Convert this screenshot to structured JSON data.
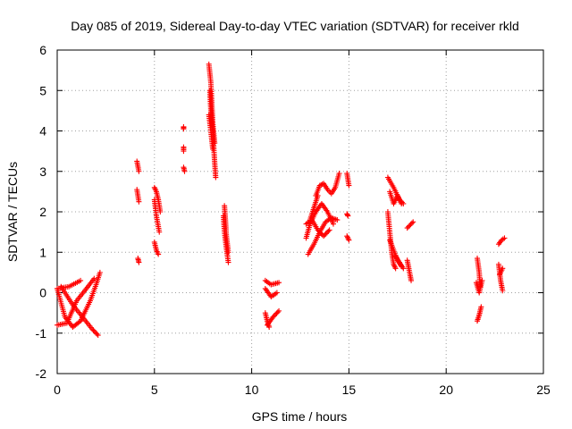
{
  "chart_data": {
    "type": "scatter",
    "title": "Day 085 of 2019, Sidereal Day-to-day VTEC variation (SDTVAR) for receiver rkld",
    "xlabel": "GPS time / hours",
    "ylabel": "SDTVAR / TECUs",
    "xlim": [
      0,
      25
    ],
    "ylim": [
      -2,
      6
    ],
    "xticks": [
      0,
      5,
      10,
      15,
      20,
      25
    ],
    "yticks": [
      -2,
      -1,
      0,
      1,
      2,
      3,
      4,
      5,
      6
    ],
    "grid": true,
    "marker": "plus",
    "color": "#ff0000",
    "segments": [
      {
        "x": [
          0.0,
          0.4,
          0.8,
          1.2,
          1.4
        ],
        "y": [
          0.1,
          -0.6,
          -0.85,
          -0.7,
          -0.5
        ]
      },
      {
        "x": [
          0.0,
          0.5,
          1.0,
          1.5,
          1.9
        ],
        "y": [
          -0.8,
          -0.75,
          -0.2,
          0.1,
          0.35
        ]
      },
      {
        "x": [
          0.2,
          0.8,
          1.3,
          1.8,
          2.1
        ],
        "y": [
          0.15,
          -0.3,
          -0.6,
          -0.9,
          -1.05
        ]
      },
      {
        "x": [
          1.4,
          1.7,
          2.0,
          2.2
        ],
        "y": [
          -0.5,
          -0.2,
          0.2,
          0.5
        ]
      },
      {
        "x": [
          0.0,
          0.6,
          1.2
        ],
        "y": [
          0.1,
          0.15,
          0.3
        ]
      },
      {
        "x": [
          4.1,
          4.2
        ],
        "y": [
          3.25,
          3.0
        ]
      },
      {
        "x": [
          4.1,
          4.2
        ],
        "y": [
          2.55,
          2.25
        ]
      },
      {
        "x": [
          4.15,
          4.2
        ],
        "y": [
          0.85,
          0.75
        ]
      },
      {
        "x": [
          5.0,
          5.1,
          5.2,
          5.3
        ],
        "y": [
          2.6,
          2.5,
          2.3,
          2.0
        ]
      },
      {
        "x": [
          5.0,
          5.1,
          5.25
        ],
        "y": [
          2.3,
          1.9,
          1.5
        ]
      },
      {
        "x": [
          5.0,
          5.1,
          5.2
        ],
        "y": [
          1.25,
          1.05,
          0.95
        ]
      },
      {
        "x": [
          6.5,
          6.5
        ],
        "y": [
          4.1,
          4.05
        ]
      },
      {
        "x": [
          6.5,
          6.5
        ],
        "y": [
          3.6,
          3.5
        ]
      },
      {
        "x": [
          6.5,
          6.55
        ],
        "y": [
          3.1,
          3.0
        ]
      },
      {
        "x": [
          7.8,
          7.9,
          7.95,
          8.0,
          8.1
        ],
        "y": [
          5.65,
          5.2,
          4.7,
          4.2,
          3.7
        ]
      },
      {
        "x": [
          7.85,
          7.9,
          8.0,
          8.05,
          8.1,
          8.15
        ],
        "y": [
          5.0,
          4.5,
          4.0,
          3.6,
          3.2,
          2.85
        ]
      },
      {
        "x": [
          7.8,
          7.9,
          8.0
        ],
        "y": [
          4.4,
          4.0,
          3.55
        ]
      },
      {
        "x": [
          8.6,
          8.65,
          8.7,
          8.8
        ],
        "y": [
          2.15,
          1.8,
          1.4,
          1.0
        ]
      },
      {
        "x": [
          8.55,
          8.6,
          8.7,
          8.8
        ],
        "y": [
          1.9,
          1.5,
          1.1,
          0.75
        ]
      },
      {
        "x": [
          10.7,
          10.8,
          10.9
        ],
        "y": [
          -0.5,
          -0.7,
          -0.85
        ]
      },
      {
        "x": [
          10.7,
          11.0,
          11.4
        ],
        "y": [
          0.3,
          0.2,
          0.25
        ]
      },
      {
        "x": [
          10.8,
          11.1,
          11.4
        ],
        "y": [
          -0.8,
          -0.6,
          -0.45
        ]
      },
      {
        "x": [
          10.7,
          11.0,
          11.3
        ],
        "y": [
          0.1,
          -0.1,
          0.0
        ]
      },
      {
        "x": [
          12.9,
          13.2,
          13.5,
          13.8,
          14.1,
          14.4
        ],
        "y": [
          0.95,
          1.2,
          1.5,
          1.75,
          1.85,
          1.8
        ]
      },
      {
        "x": [
          12.8,
          13.1,
          13.4,
          13.7,
          14.0
        ],
        "y": [
          1.7,
          1.8,
          1.55,
          1.4,
          1.55
        ]
      },
      {
        "x": [
          12.8,
          13.0,
          13.3,
          13.6,
          13.9,
          14.2
        ],
        "y": [
          1.35,
          1.7,
          2.0,
          2.2,
          2.0,
          1.7
        ]
      },
      {
        "x": [
          13.3,
          13.5,
          13.7,
          13.9,
          14.1,
          14.3,
          14.5
        ],
        "y": [
          2.4,
          2.65,
          2.7,
          2.55,
          2.45,
          2.6,
          2.95
        ]
      },
      {
        "x": [
          13.0,
          13.2,
          13.4
        ],
        "y": [
          1.8,
          2.1,
          2.4
        ]
      },
      {
        "x": [
          14.9,
          15.0
        ],
        "y": [
          2.95,
          2.65
        ]
      },
      {
        "x": [
          14.9,
          14.95
        ],
        "y": [
          1.95,
          1.9
        ]
      },
      {
        "x": [
          14.9,
          15.0
        ],
        "y": [
          1.4,
          1.3
        ]
      },
      {
        "x": [
          17.0,
          17.3,
          17.6,
          17.8
        ],
        "y": [
          2.85,
          2.6,
          2.3,
          2.2
        ]
      },
      {
        "x": [
          17.1,
          17.3,
          17.5,
          17.7
        ],
        "y": [
          2.5,
          2.2,
          2.4,
          2.2
        ]
      },
      {
        "x": [
          17.0,
          17.1,
          17.2,
          17.3,
          17.4
        ],
        "y": [
          2.0,
          1.5,
          1.0,
          0.7,
          0.6
        ]
      },
      {
        "x": [
          17.1,
          17.3,
          17.5,
          17.7
        ],
        "y": [
          1.3,
          1.05,
          0.8,
          0.65
        ]
      },
      {
        "x": [
          17.4,
          17.6,
          17.8
        ],
        "y": [
          0.9,
          0.75,
          0.6
        ]
      },
      {
        "x": [
          18.0,
          18.1,
          18.2
        ],
        "y": [
          0.8,
          0.55,
          0.3
        ]
      },
      {
        "x": [
          18.0,
          18.3
        ],
        "y": [
          1.6,
          1.75
        ]
      },
      {
        "x": [
          21.6,
          21.7,
          21.75
        ],
        "y": [
          0.85,
          0.5,
          0.15
        ]
      },
      {
        "x": [
          21.6,
          21.7,
          21.8
        ],
        "y": [
          -0.7,
          -0.55,
          -0.35
        ]
      },
      {
        "x": [
          21.55,
          21.7,
          21.85
        ],
        "y": [
          0.25,
          0.0,
          0.3
        ]
      },
      {
        "x": [
          22.7,
          22.85,
          23.0
        ],
        "y": [
          1.2,
          1.3,
          1.35
        ]
      },
      {
        "x": [
          22.7,
          22.8,
          22.9
        ],
        "y": [
          0.7,
          0.3,
          0.05
        ]
      },
      {
        "x": [
          22.75,
          22.9
        ],
        "y": [
          0.45,
          0.6
        ]
      }
    ]
  }
}
